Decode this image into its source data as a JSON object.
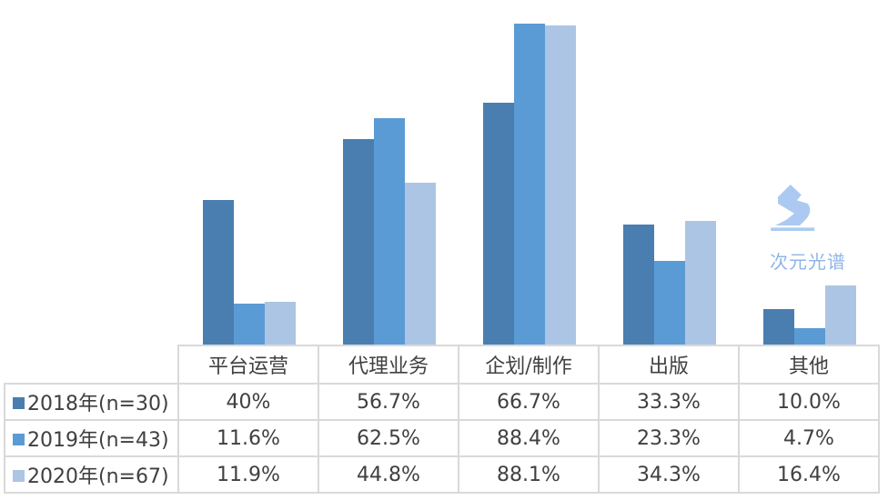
{
  "chart_data": {
    "type": "bar",
    "categories": [
      "平台运营",
      "代理业务",
      "企划/制作",
      "出版",
      "其他"
    ],
    "series": [
      {
        "name": "2018年(n=30)",
        "color": "#4a7eb0",
        "values": [
          40,
          56.7,
          66.7,
          33.3,
          10.0
        ],
        "labels": [
          "40%",
          "56.7%",
          "66.7%",
          "33.3%",
          "10.0%"
        ]
      },
      {
        "name": "2019年(n=43)",
        "color": "#5b9bd5",
        "values": [
          11.6,
          62.5,
          88.4,
          23.3,
          4.7
        ],
        "labels": [
          "11.6%",
          "62.5%",
          "88.4%",
          "23.3%",
          "4.7%"
        ]
      },
      {
        "name": "2020年(n=67)",
        "color": "#adc5e4",
        "values": [
          11.9,
          44.8,
          88.1,
          34.3,
          16.4
        ],
        "labels": [
          "11.9%",
          "44.8%",
          "88.1%",
          "34.3%",
          "16.4%"
        ]
      }
    ],
    "ylim": [
      0,
      95
    ],
    "grid": false,
    "legend": "data table (left)"
  },
  "watermark": {
    "text": "次元光谱",
    "color": "#8fb4e8"
  }
}
